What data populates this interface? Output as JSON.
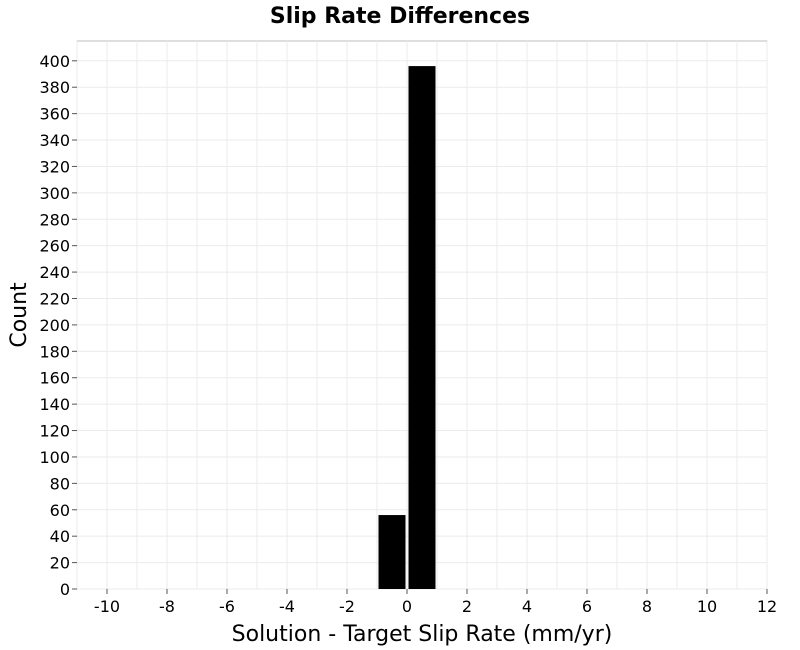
{
  "chart_data": {
    "type": "bar",
    "title": "Slip Rate Differences",
    "xlabel": "Solution - Target Slip Rate (mm/yr)",
    "ylabel": "Count",
    "xlim": [
      -11,
      12
    ],
    "ylim": [
      0,
      415
    ],
    "xticks": [
      -10,
      -8,
      -6,
      -4,
      -2,
      0,
      2,
      4,
      6,
      8,
      10,
      12
    ],
    "yticks": [
      0,
      20,
      40,
      60,
      80,
      100,
      120,
      140,
      160,
      180,
      200,
      220,
      240,
      260,
      280,
      300,
      320,
      340,
      360,
      380,
      400
    ],
    "bin_width": 1,
    "bins": [
      {
        "x": -0.5,
        "count": 56
      },
      {
        "x": 0.5,
        "count": 396
      }
    ],
    "grid": true,
    "bar_color": "#000000"
  }
}
